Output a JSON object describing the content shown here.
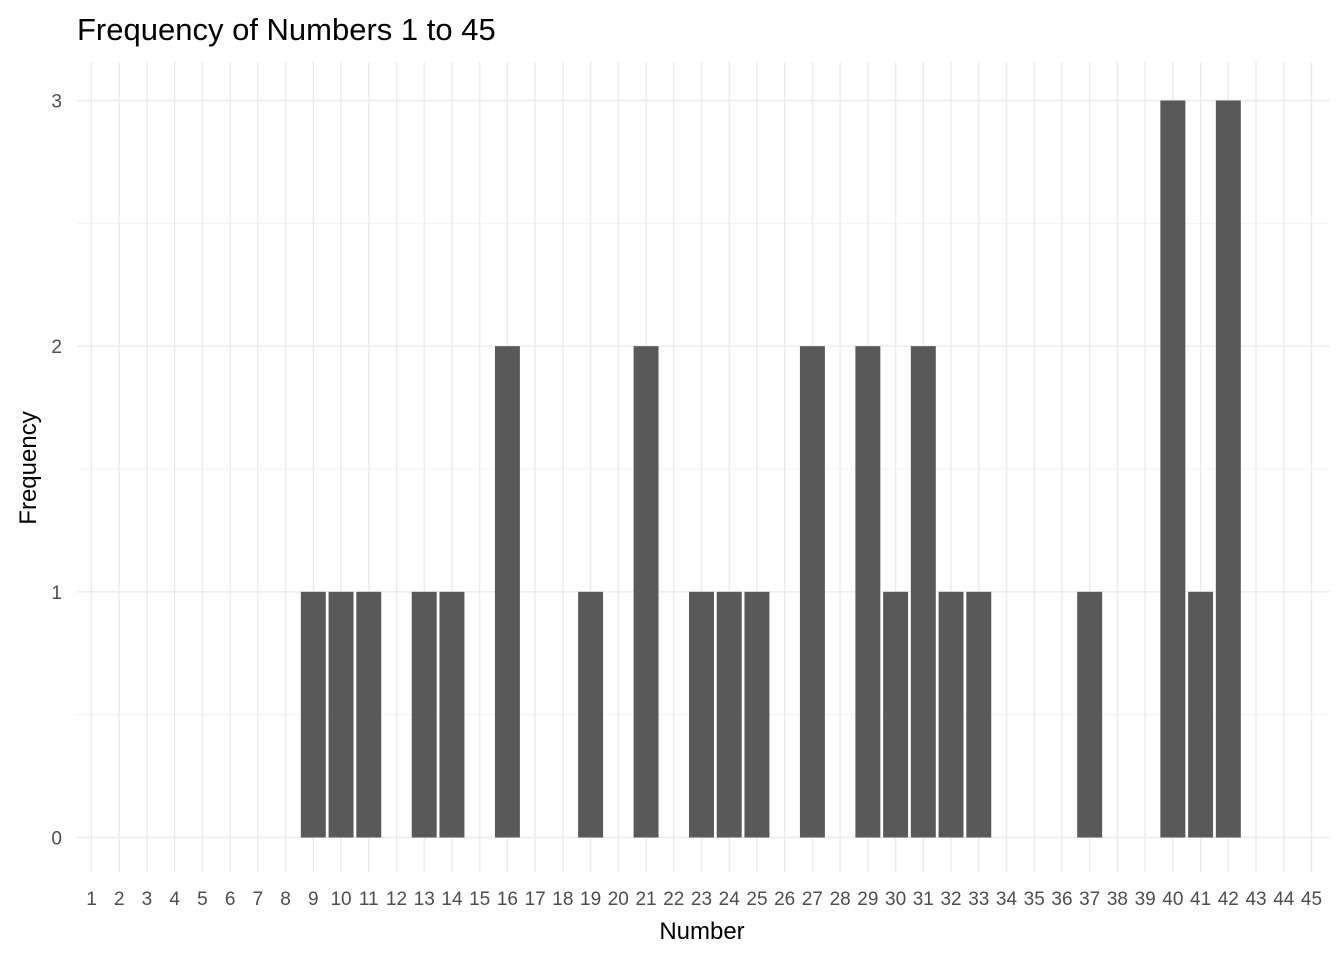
{
  "chart_data": {
    "type": "bar",
    "title": "Frequency of Numbers 1 to 45",
    "xlabel": "Number",
    "ylabel": "Frequency",
    "categories": [
      "1",
      "2",
      "3",
      "4",
      "5",
      "6",
      "7",
      "8",
      "9",
      "10",
      "11",
      "12",
      "13",
      "14",
      "15",
      "16",
      "17",
      "18",
      "19",
      "20",
      "21",
      "22",
      "23",
      "24",
      "25",
      "26",
      "27",
      "28",
      "29",
      "30",
      "31",
      "32",
      "33",
      "34",
      "35",
      "36",
      "37",
      "38",
      "39",
      "40",
      "41",
      "42",
      "43",
      "44",
      "45"
    ],
    "values": [
      0,
      0,
      0,
      0,
      0,
      0,
      0,
      0,
      1,
      1,
      1,
      0,
      1,
      1,
      0,
      2,
      0,
      0,
      1,
      0,
      2,
      0,
      1,
      1,
      1,
      0,
      2,
      0,
      2,
      1,
      2,
      1,
      1,
      0,
      0,
      0,
      1,
      0,
      0,
      3,
      1,
      3,
      0,
      0,
      0
    ],
    "ylim": [
      0,
      3
    ],
    "yticks": [
      0,
      1,
      2,
      3
    ],
    "grid": true,
    "bar_color": "#595959",
    "grid_color": "#ebebeb"
  }
}
